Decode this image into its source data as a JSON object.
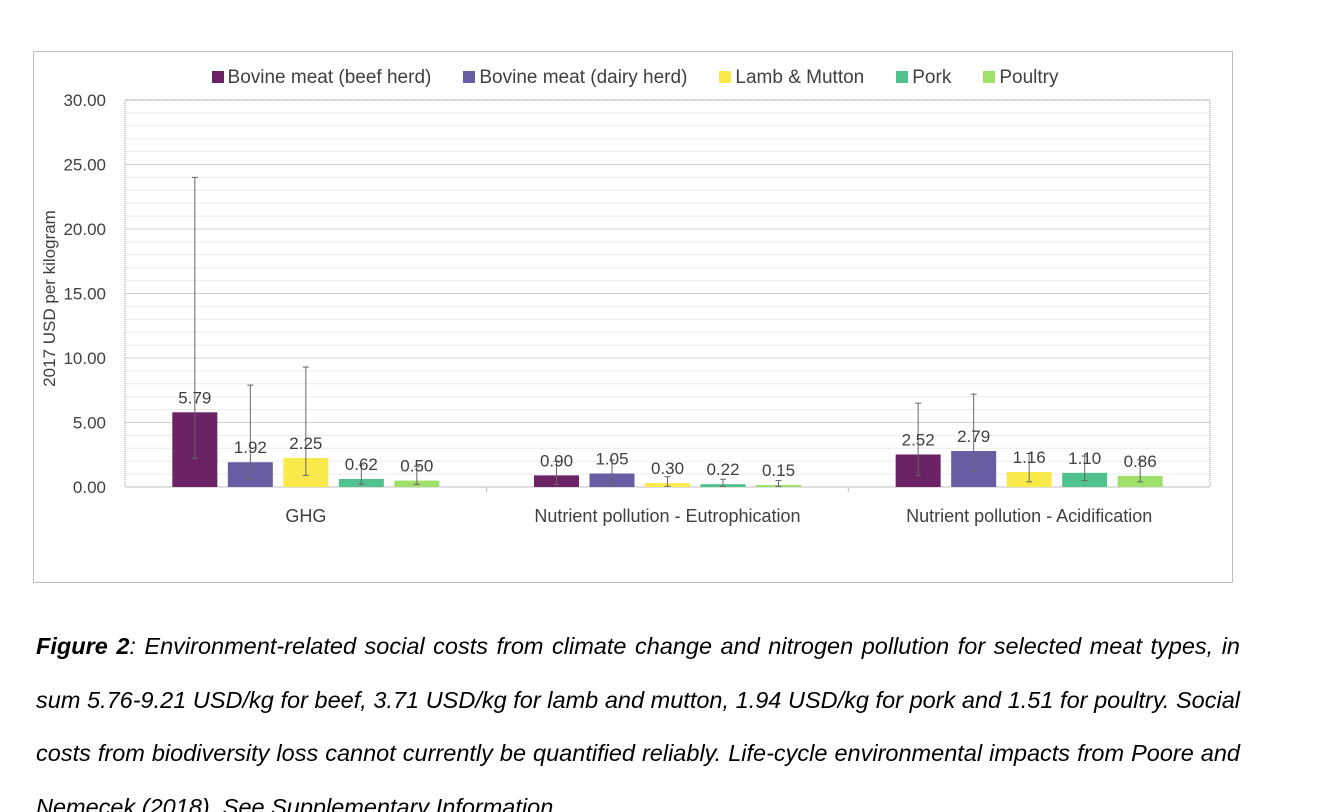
{
  "chart_data": {
    "type": "bar",
    "title": "",
    "xlabel": "",
    "ylabel": "2017 USD per kilogram",
    "ylim": [
      0,
      30
    ],
    "yticks": [
      "0.00",
      "5.00",
      "10.00",
      "15.00",
      "20.00",
      "25.00",
      "30.00"
    ],
    "grid": true,
    "legend_position": "top",
    "categories": [
      "GHG",
      "Nutrient pollution - Eutrophication",
      "Nutrient pollution - Acidification"
    ],
    "series": [
      {
        "name": "Bovine meat (beef herd)",
        "color": "#6b2366",
        "values": [
          5.79,
          0.9,
          2.52
        ],
        "labels": [
          "5.79",
          "0.90",
          "2.52"
        ],
        "error_low": [
          2.2,
          0.2,
          0.9
        ],
        "error_high": [
          24.0,
          2.0,
          6.5
        ]
      },
      {
        "name": "Bovine meat (dairy herd)",
        "color": "#675da2",
        "values": [
          1.92,
          1.05,
          2.79
        ],
        "labels": [
          "1.92",
          "1.05",
          "2.79"
        ],
        "error_low": [
          0.6,
          0.2,
          1.2
        ],
        "error_high": [
          7.9,
          2.1,
          7.2
        ]
      },
      {
        "name": "Lamb & Mutton",
        "color": "#f9e94a",
        "values": [
          2.25,
          0.3,
          1.16
        ],
        "labels": [
          "2.25",
          "0.30",
          "1.16"
        ],
        "error_low": [
          0.9,
          0.05,
          0.4
        ],
        "error_high": [
          9.3,
          0.8,
          2.6
        ]
      },
      {
        "name": "Pork",
        "color": "#4fc28d",
        "values": [
          0.62,
          0.22,
          1.1
        ],
        "labels": [
          "0.62",
          "0.22",
          "1.10"
        ],
        "error_low": [
          0.2,
          0.05,
          0.5
        ],
        "error_high": [
          1.7,
          0.6,
          2.4
        ]
      },
      {
        "name": "Poultry",
        "color": "#9fe06b",
        "values": [
          0.5,
          0.15,
          0.86
        ],
        "labels": [
          "0.50",
          "0.15",
          "0.86"
        ],
        "error_low": [
          0.2,
          0.05,
          0.4
        ],
        "error_high": [
          1.6,
          0.5,
          2.1
        ]
      }
    ]
  },
  "caption": {
    "figure_label": "Figure 2",
    "text": ": Environment-related social costs from climate change and nitrogen pollution for selected meat types, in sum 5.76-9.21 USD/kg for beef, 3.71 USD/kg for lamb and mutton, 1.94 USD/kg for pork and 1.51 for poultry. Social costs from biodiversity loss cannot currently be quantified reliably. Life-cycle environmental impacts from Poore and Nemecek (2018). See Supplementary Information."
  }
}
